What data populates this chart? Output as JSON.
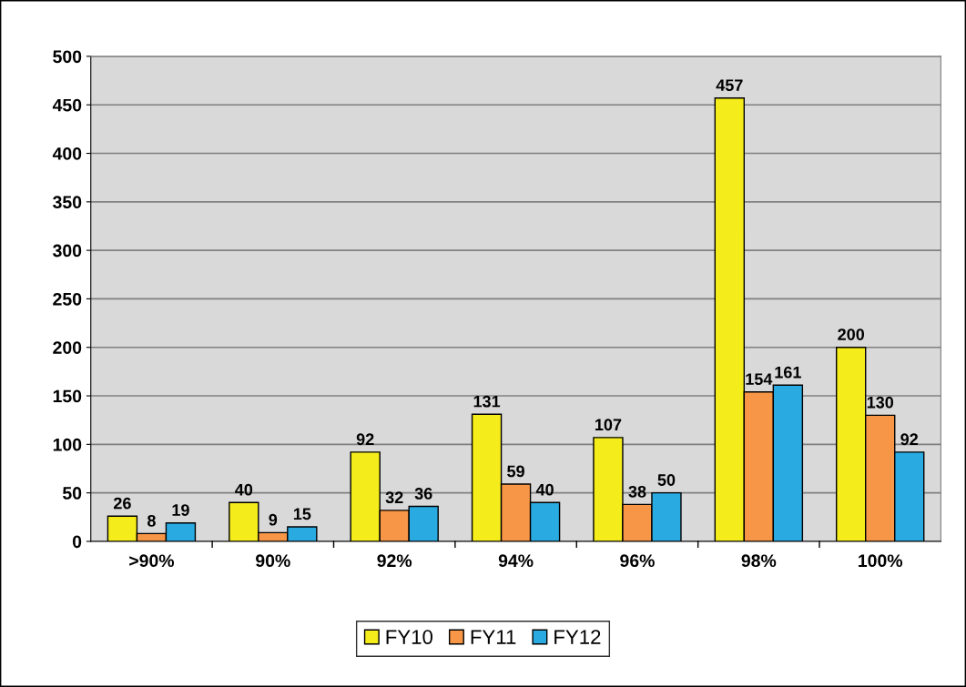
{
  "chart_data": {
    "type": "bar",
    "categories": [
      ">90%",
      "90%",
      "92%",
      "94%",
      "96%",
      "98%",
      "100%"
    ],
    "series": [
      {
        "name": "FY10",
        "color": "#f5ec1b",
        "values": [
          26,
          40,
          92,
          131,
          107,
          457,
          200
        ]
      },
      {
        "name": "FY11",
        "color": "#f79646",
        "values": [
          8,
          9,
          32,
          59,
          38,
          154,
          130
        ]
      },
      {
        "name": "FY12",
        "color": "#29abe2",
        "values": [
          19,
          15,
          36,
          40,
          50,
          161,
          92
        ]
      }
    ],
    "ylim": [
      0,
      500
    ],
    "yticks": [
      0,
      50,
      100,
      150,
      200,
      250,
      300,
      350,
      400,
      450,
      500
    ],
    "grid": "y",
    "legend": "bottom",
    "data_labels": true
  }
}
